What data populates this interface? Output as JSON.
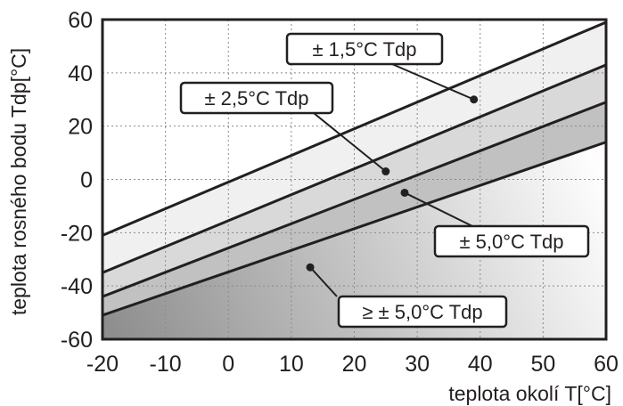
{
  "chart_data": {
    "type": "line",
    "xlabel": "teplota okolí  T[°C]",
    "ylabel": "teplota rosného bodu  Tdp[°C]",
    "xlim": [
      -20,
      60
    ],
    "ylim": [
      -60,
      60
    ],
    "x_ticks": [
      "-20",
      "-10",
      "0",
      "10",
      "20",
      "30",
      "40",
      "50",
      "60"
    ],
    "y_ticks": [
      "60",
      "40",
      "20",
      "0",
      "-20",
      "-40",
      "-60"
    ],
    "grid": true,
    "series": [
      {
        "x": [
          -20,
          60
        ],
        "y": [
          -21,
          59
        ]
      },
      {
        "x": [
          -20,
          60
        ],
        "y": [
          -35,
          43
        ]
      },
      {
        "x": [
          -20,
          60
        ],
        "y": [
          -44,
          29
        ]
      },
      {
        "x": [
          -20,
          60
        ],
        "y": [
          -51,
          14
        ]
      }
    ],
    "annotations": [
      {
        "text": "± 1,5°C Tdp",
        "point": [
          39,
          30
        ]
      },
      {
        "text": "± 2,5°C Tdp",
        "point": [
          25,
          3
        ]
      },
      {
        "text": "± 5,0°C Tdp",
        "point": [
          28,
          -5
        ]
      },
      {
        "text": "≥ ± 5,0°C Tdp",
        "point": [
          13,
          -33
        ]
      }
    ],
    "colors": {
      "line": "#231f20",
      "band_1": "#f0f0f0",
      "band_2": "#d9d9d9",
      "band_3": "#c1c1c1",
      "band_4_light": "#fdfdfd",
      "band_4_dark": "#8e8e8e"
    }
  }
}
